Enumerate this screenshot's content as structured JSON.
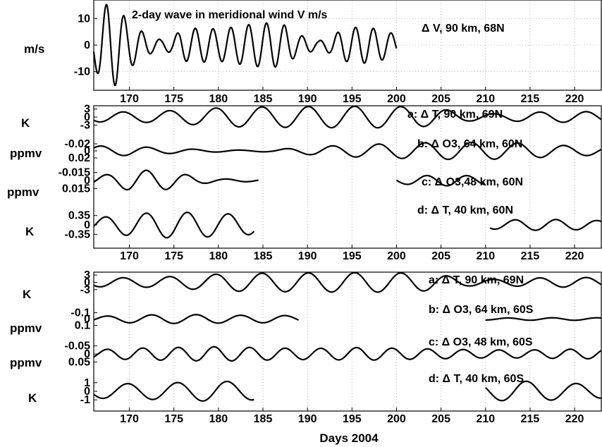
{
  "chart_data": [
    {
      "type": "line",
      "title": "2-day wave in meridional wind V m/s",
      "ylabel": "m/s",
      "xlabel": "",
      "xlim": [
        166,
        223
      ],
      "ylim": [
        -17,
        17
      ],
      "x_ticks": [
        "170",
        "175",
        "180",
        "185",
        "190",
        "195",
        "200",
        "205",
        "210",
        "215",
        "220"
      ],
      "grid": true,
      "series": [
        {
          "name": "ΔV, 90 km, 68N",
          "label": "Δ V, 90 km, 68N",
          "y_ticks": [
            {
              "value": 10,
              "text": "10"
            },
            {
              "value": 0,
              "text": "0"
            },
            {
              "value": -10,
              "text": "-10"
            }
          ],
          "period": 2.0,
          "phase_day": 167.4,
          "segments": [
            [
              166,
              200
            ]
          ],
          "amplitude": [
            [
              166,
              8
            ],
            [
              166.8,
              13
            ],
            [
              167.6,
              16
            ],
            [
              168.6,
              15
            ],
            [
              169.6,
              10
            ],
            [
              170.6,
              7
            ],
            [
              171.5,
              5
            ],
            [
              172.5,
              3
            ],
            [
              173.6,
              2
            ],
            [
              174.8,
              3
            ],
            [
              176,
              6
            ],
            [
              178,
              6.5
            ],
            [
              180,
              6
            ],
            [
              182,
              7
            ],
            [
              184,
              8
            ],
            [
              186,
              8.5
            ],
            [
              187.5,
              7.5
            ],
            [
              188.8,
              4
            ],
            [
              190,
              3
            ],
            [
              191.2,
              1.5
            ],
            [
              192.5,
              3
            ],
            [
              194,
              6
            ],
            [
              196,
              7
            ],
            [
              198,
              6
            ],
            [
              200,
              4
            ]
          ]
        }
      ]
    },
    {
      "type": "line",
      "title": "",
      "xlabel": "",
      "xlim": [
        166,
        223
      ],
      "x_ticks": [
        "170",
        "175",
        "180",
        "185",
        "190",
        "195",
        "200",
        "205",
        "210",
        "215",
        "220"
      ],
      "grid": true,
      "series": [
        {
          "name": "a: ΔT, 90 km, 69N",
          "label": "a: Δ T, 90 km, 69N",
          "unit": "K",
          "y_ticks": [
            {
              "value": 3,
              "text": "3"
            },
            {
              "value": 0,
              "text": "0"
            },
            {
              "value": -3,
              "text": "-3"
            }
          ],
          "scale_max": 4.2,
          "period": 5.2,
          "phase_day": 169.3,
          "segments": [
            [
              166,
              223
            ]
          ],
          "amplitude": [
            [
              166,
              1.8
            ],
            [
              172,
              2
            ],
            [
              176,
              2.6
            ],
            [
              181,
              3.6
            ],
            [
              186,
              3.8
            ],
            [
              190,
              3.9
            ],
            [
              194,
              4
            ],
            [
              198,
              4
            ],
            [
              202,
              3.8
            ],
            [
              205,
              3
            ],
            [
              208,
              1.5
            ],
            [
              211,
              1.2
            ],
            [
              215,
              1.8
            ],
            [
              220,
              2
            ],
            [
              223,
              2
            ]
          ]
        },
        {
          "name": "b: ΔO3, 64 km, 60N",
          "label": "b: Δ O3, 64 km, 60N",
          "unit": "ppmv",
          "y_ticks": [
            {
              "value": 0.02,
              "text": "-0.02"
            },
            {
              "value": 0,
              "text": "0"
            },
            {
              "value": -0.02,
              "text": "0.02"
            }
          ],
          "scale_max": 0.028,
          "period": 5.2,
          "phase_day": 166.8,
          "segments": [
            [
              166,
              223
            ]
          ],
          "amplitude": [
            [
              166,
              0.014
            ],
            [
              170,
              0.013
            ],
            [
              174,
              0.008
            ],
            [
              178,
              0.004
            ],
            [
              183,
              0.002
            ],
            [
              186,
              0.003
            ],
            [
              188,
              0.007
            ],
            [
              191,
              0.012
            ],
            [
              195,
              0.017
            ],
            [
              200,
              0.021
            ],
            [
              205,
              0.024
            ],
            [
              210,
              0.024
            ],
            [
              214,
              0.022
            ],
            [
              218,
              0.016
            ],
            [
              223,
              0.012
            ]
          ]
        },
        {
          "name": "c: ΔO3,48 km, 60N",
          "label": "c: Δ O3,48 km, 60N",
          "unit": "ppmv",
          "y_ticks": [
            {
              "value": 0.015,
              "text": "-0.015"
            },
            {
              "value": 0,
              "text": "0"
            },
            {
              "value": -0.015,
              "text": "0.015"
            }
          ],
          "scale_max": 0.021,
          "period": 4.5,
          "phase_day": 167.4,
          "segments": [
            [
              166,
              184.5
            ],
            [
              200,
              210
            ]
          ],
          "amplitude": [
            [
              166,
              0.008
            ],
            [
              168,
              0.012
            ],
            [
              170,
              0.018
            ],
            [
              172,
              0.019
            ],
            [
              174,
              0.017
            ],
            [
              176,
              0.012
            ],
            [
              178,
              0.006
            ],
            [
              180,
              0.003
            ],
            [
              184.5,
              0.002
            ],
            [
              200,
              0.006
            ],
            [
              203,
              0.009
            ],
            [
              206,
              0.01
            ],
            [
              210,
              0.008
            ]
          ]
        },
        {
          "name": "d: ΔT, 40 km, 60N",
          "label": "d: Δ T, 40 km, 60N",
          "unit": "K",
          "y_ticks": [
            {
              "value": 0.35,
              "text": "0.35"
            },
            {
              "value": 0,
              "text": "0"
            },
            {
              "value": -0.35,
              "text": "-0.35"
            }
          ],
          "scale_max": 0.5,
          "period": 4.6,
          "phase_day": 167.3,
          "segments": [
            [
              166,
              184
            ],
            [
              210.5,
              223
            ]
          ],
          "amplitude": [
            [
              166,
              0.25
            ],
            [
              170,
              0.4
            ],
            [
              174,
              0.48
            ],
            [
              178,
              0.46
            ],
            [
              182,
              0.4
            ],
            [
              184,
              0.35
            ],
            [
              210.5,
              0.15
            ],
            [
              214,
              0.2
            ],
            [
              218,
              0.2
            ],
            [
              223,
              0.16
            ]
          ]
        }
      ]
    },
    {
      "type": "line",
      "title": "",
      "xlabel": "Days 2004",
      "xlim": [
        166,
        223
      ],
      "x_ticks": [
        "170",
        "175",
        "180",
        "185",
        "190",
        "195",
        "200",
        "205",
        "210",
        "215",
        "220"
      ],
      "grid": true,
      "series": [
        {
          "name": "a: ΔT, 90 km, 69N",
          "label": "a: Δ T, 90 km, 69N",
          "unit": "K",
          "y_ticks": [
            {
              "value": 3,
              "text": "3"
            },
            {
              "value": 0,
              "text": "0"
            },
            {
              "value": -3,
              "text": "-3"
            }
          ],
          "scale_max": 4.2,
          "period": 5.2,
          "phase_day": 169.3,
          "segments": [
            [
              166,
              223
            ]
          ],
          "amplitude": [
            [
              166,
              1.8
            ],
            [
              172,
              2
            ],
            [
              176,
              2.6
            ],
            [
              181,
              3.6
            ],
            [
              186,
              3.8
            ],
            [
              190,
              3.9
            ],
            [
              194,
              4
            ],
            [
              198,
              4
            ],
            [
              202,
              3.8
            ],
            [
              205,
              3
            ],
            [
              208,
              1.5
            ],
            [
              211,
              1.2
            ],
            [
              215,
              1.8
            ],
            [
              220,
              2
            ],
            [
              223,
              2
            ]
          ]
        },
        {
          "name": "b: ΔO3, 64 km, 60S",
          "label": "b: Δ O3, 64 km, 60S",
          "unit": "ppmv",
          "y_ticks": [
            {
              "value": 0.1,
              "text": "-0.1"
            },
            {
              "value": 0,
              "text": "0"
            },
            {
              "value": -0.1,
              "text": "0.1"
            }
          ],
          "scale_max": 0.14,
          "period": 5.0,
          "phase_day": 167.5,
          "segments": [
            [
              166,
              189
            ],
            [
              210,
              223
            ]
          ],
          "amplitude": [
            [
              166,
              0.04
            ],
            [
              170,
              0.06
            ],
            [
              174,
              0.07
            ],
            [
              178,
              0.07
            ],
            [
              182,
              0.06
            ],
            [
              186,
              0.06
            ],
            [
              189,
              0.05
            ],
            [
              210,
              0.015
            ],
            [
              216,
              0.02
            ],
            [
              223,
              0.02
            ]
          ]
        },
        {
          "name": "c: ΔO3, 48 km, 60S",
          "label": "c: Δ O3, 48 km, 60S",
          "unit": "ppmv",
          "y_ticks": [
            {
              "value": 0.05,
              "text": "-0.05"
            },
            {
              "value": 0,
              "text": "0"
            },
            {
              "value": -0.05,
              "text": "0.05"
            }
          ],
          "scale_max": 0.07,
          "period": 4.0,
          "phase_day": 167.5,
          "segments": [
            [
              166,
              223
            ]
          ],
          "amplitude": [
            [
              166,
              0.025
            ],
            [
              170,
              0.035
            ],
            [
              175,
              0.04
            ],
            [
              180,
              0.045
            ],
            [
              184,
              0.04
            ],
            [
              188,
              0.035
            ],
            [
              192,
              0.035
            ],
            [
              196,
              0.04
            ],
            [
              200,
              0.035
            ],
            [
              205,
              0.03
            ],
            [
              210,
              0.025
            ],
            [
              215,
              0.025
            ],
            [
              220,
              0.03
            ],
            [
              223,
              0.03
            ]
          ]
        },
        {
          "name": "d: ΔT, 40 km, 60S",
          "label": "d: Δ T, 40 km, 60S",
          "unit": "K",
          "y_ticks": [
            {
              "value": 1,
              "text": "1"
            },
            {
              "value": 0,
              "text": "0"
            },
            {
              "value": -1,
              "text": "-1"
            }
          ],
          "scale_max": 1.4,
          "period": 5.6,
          "phase_day": 169.8,
          "segments": [
            [
              166,
              184
            ],
            [
              210,
              223
            ]
          ],
          "amplitude": [
            [
              166,
              0.8
            ],
            [
              170,
              0.9
            ],
            [
              175,
              1
            ],
            [
              180,
              1.2
            ],
            [
              184,
              1
            ],
            [
              210,
              1
            ],
            [
              214,
              1.2
            ],
            [
              218,
              1
            ],
            [
              223,
              0.8
            ]
          ]
        }
      ]
    }
  ]
}
